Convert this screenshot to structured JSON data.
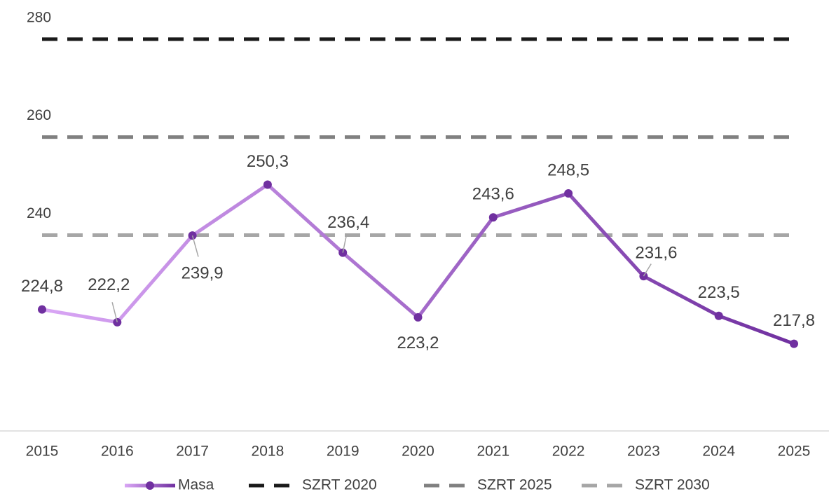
{
  "chart_data": {
    "type": "line",
    "categories": [
      "2015",
      "2016",
      "2017",
      "2018",
      "2019",
      "2020",
      "2021",
      "2022",
      "2023",
      "2024",
      "2025"
    ],
    "series": [
      {
        "name": "Masa",
        "color": [
          "#d9a6f5",
          "#7030a0"
        ],
        "values": [
          224.8,
          222.2,
          239.9,
          250.3,
          236.4,
          223.2,
          243.6,
          248.5,
          231.6,
          223.5,
          217.8
        ],
        "value_labels": [
          "224,8",
          "222,2",
          "239,9",
          "250,3",
          "236,4",
          "223,2",
          "243,6",
          "248,5",
          "231,6",
          "223,5",
          "217,8"
        ]
      },
      {
        "name": "SZRT 2020",
        "color": "#1a1a1a",
        "dashed": true,
        "values": [
          280,
          280,
          280,
          280,
          280,
          280,
          280,
          280,
          280,
          280,
          280
        ]
      },
      {
        "name": "SZRT 2025",
        "color": "#808080",
        "dashed": true,
        "values": [
          260,
          260,
          260,
          260,
          260,
          260,
          260,
          260,
          260,
          260,
          260
        ]
      },
      {
        "name": "SZRT 2030",
        "color": "#a6a6a6",
        "dashed": true,
        "values": [
          240,
          240,
          240,
          240,
          240,
          240,
          240,
          240,
          240,
          240,
          240
        ]
      }
    ],
    "ylim": [
      200,
      288
    ],
    "yticks": [
      240,
      260,
      280
    ],
    "grid": false,
    "legend": "bottom"
  }
}
